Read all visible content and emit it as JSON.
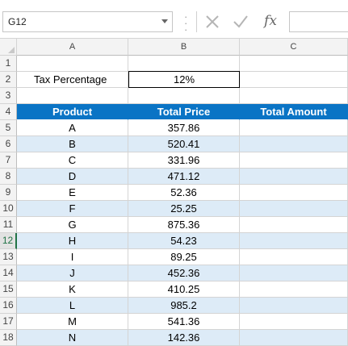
{
  "formula_bar": {
    "name_box": "G12",
    "fx": "fx",
    "formula": ""
  },
  "columns": [
    "A",
    "B",
    "C"
  ],
  "rows": [
    "1",
    "2",
    "3",
    "4",
    "5",
    "6",
    "7",
    "8",
    "9",
    "10",
    "11",
    "12",
    "13",
    "14",
    "15",
    "16",
    "17",
    "18"
  ],
  "selected_row": "12",
  "sheet": {
    "tax_label": "Tax Percentage",
    "tax_value": "12%",
    "headers": [
      "Product",
      "Total Price",
      "Total Amount"
    ],
    "items": [
      {
        "product": "A",
        "price": "357.86"
      },
      {
        "product": "B",
        "price": "520.41"
      },
      {
        "product": "C",
        "price": "331.96"
      },
      {
        "product": "D",
        "price": "471.12"
      },
      {
        "product": "E",
        "price": "52.36"
      },
      {
        "product": "F",
        "price": "25.25"
      },
      {
        "product": "G",
        "price": "875.36"
      },
      {
        "product": "H",
        "price": "54.23"
      },
      {
        "product": "I",
        "price": "89.25"
      },
      {
        "product": "J",
        "price": "452.36"
      },
      {
        "product": "K",
        "price": "410.25"
      },
      {
        "product": "L",
        "price": "985.2"
      },
      {
        "product": "M",
        "price": "541.36"
      },
      {
        "product": "N",
        "price": "142.36"
      }
    ]
  },
  "colors": {
    "header_fill": "#0a74c5",
    "band_fill": "#ddebf7",
    "selection_accent": "#217346"
  }
}
